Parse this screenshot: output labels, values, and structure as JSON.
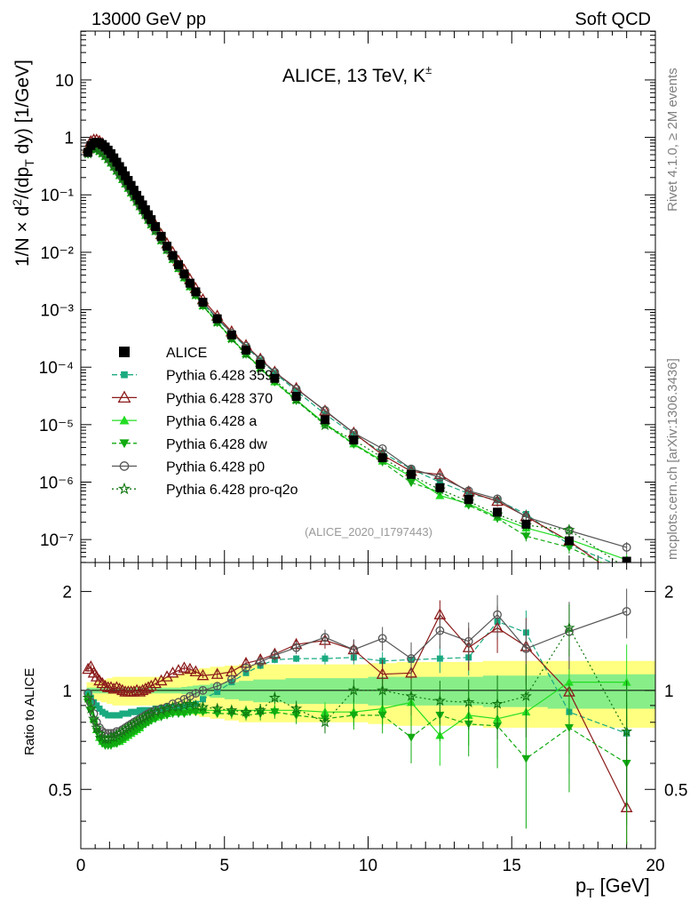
{
  "header": {
    "left": "13000 GeV pp",
    "right": "Soft QCD"
  },
  "side_labels": {
    "top": "Rivet 4.1.0, ≥ 2M events",
    "bottom": "mcplots.cern.ch [arXiv:1306.3436]"
  },
  "colors": {
    "data": "#000000",
    "p359": "#1aaa80",
    "p370": "#8b1a1a",
    "pa": "#22dd22",
    "pdw": "#11aa11",
    "pp0": "#555555",
    "pq2o": "#117711",
    "band_outer": "#ffff80",
    "band_inner": "#88ee88"
  },
  "chart_data": [
    {
      "type": "scatter",
      "panel": "main",
      "title": "ALICE, 13 TeV, K±",
      "title_main": "ALICE, 13 TeV, K",
      "title_sup": "±",
      "analysis_id": "(ALICE_2020_I1797443)",
      "xlabel": "p_T [GeV]",
      "ylabel": "1/N × d²/(dp_T dy) [1/GeV]",
      "xlim": [
        0,
        20
      ],
      "ylim_log10": [
        -7.4,
        1.85
      ],
      "x_ticks": [
        0,
        5,
        10,
        15,
        20
      ],
      "y_tick_labels": [
        "10",
        "1",
        "10⁻¹",
        "10⁻²",
        "10⁻³",
        "10⁻⁴",
        "10⁻⁵",
        "10⁻⁶",
        "10⁻⁷"
      ],
      "legend_position": "center-left",
      "legend": [
        {
          "key": "data",
          "label": "ALICE"
        },
        {
          "key": "p359",
          "label": "Pythia 6.428 359"
        },
        {
          "key": "p370",
          "label": "Pythia 6.428 370"
        },
        {
          "key": "pa",
          "label": "Pythia 6.428 a"
        },
        {
          "key": "pdw",
          "label": "Pythia 6.428 dw"
        },
        {
          "key": "pp0",
          "label": "Pythia 6.428 p0"
        },
        {
          "key": "pq2o",
          "label": "Pythia 6.428 pro-q2o"
        }
      ],
      "x": [
        0.25,
        0.35,
        0.45,
        0.55,
        0.65,
        0.75,
        0.85,
        0.95,
        1.05,
        1.15,
        1.25,
        1.35,
        1.45,
        1.55,
        1.65,
        1.75,
        1.85,
        1.95,
        2.05,
        2.15,
        2.25,
        2.35,
        2.45,
        2.6,
        2.8,
        3.0,
        3.2,
        3.4,
        3.6,
        3.8,
        4.0,
        4.25,
        4.75,
        5.25,
        5.75,
        6.25,
        6.75,
        7.5,
        8.5,
        9.5,
        10.5,
        11.5,
        12.5,
        13.5,
        14.5,
        15.5,
        17.0,
        19.0
      ],
      "data_values": [
        0.55,
        0.72,
        0.8,
        0.82,
        0.8,
        0.75,
        0.68,
        0.6,
        0.52,
        0.44,
        0.37,
        0.31,
        0.26,
        0.215,
        0.178,
        0.146,
        0.12,
        0.098,
        0.081,
        0.067,
        0.055,
        0.045,
        0.037,
        0.028,
        0.019,
        0.0128,
        0.0088,
        0.0061,
        0.0042,
        0.0029,
        0.00205,
        0.00135,
        0.000695,
        0.000364,
        0.000198,
        0.000112,
        6.4e-05,
        3.1e-05,
        1.22e-05,
        5.4e-06,
        2.65e-06,
        1.36e-06,
        8e-07,
        5e-07,
        3e-07,
        1.85e-07,
        9.5e-08,
        4.2e-08
      ],
      "data_values_scaled_note": "",
      "main_values": [
        0.55,
        0.72,
        0.8,
        0.82,
        0.8,
        0.75,
        0.68,
        0.6,
        0.52,
        0.44,
        0.37,
        0.31,
        0.26,
        0.215,
        0.178,
        0.146,
        0.12,
        0.098,
        0.081,
        0.067,
        0.055,
        0.045,
        0.037,
        0.028,
        0.019,
        0.0128,
        0.0088,
        0.0061,
        0.0042,
        0.0029,
        0.00205,
        0.00135,
        0.000695,
        0.000364,
        0.000198,
        0.000112,
        6.4e-05,
        3.1e-05,
        1.22e-05,
        5.4e-06,
        2.65e-06,
        1.36e-06,
        8e-07,
        5e-07,
        3e-07,
        1.85e-07,
        9.5e-08,
        4.2e-08
      ]
    },
    {
      "type": "line",
      "panel": "ratio",
      "ylabel": "Ratio to ALICE",
      "xlabel": "p_T [GeV]",
      "xlim": [
        0,
        20
      ],
      "ylim": [
        0.33,
        2.45
      ],
      "y_ticks": [
        0.5,
        1,
        2
      ],
      "y_tick_labels": [
        "0.5",
        "1",
        "2"
      ],
      "x_tick_labels": [
        "0",
        "5",
        "10",
        "15",
        "20"
      ],
      "x": [
        0.25,
        0.35,
        0.45,
        0.55,
        0.65,
        0.75,
        0.85,
        0.95,
        1.05,
        1.15,
        1.25,
        1.35,
        1.45,
        1.55,
        1.65,
        1.75,
        1.85,
        1.95,
        2.05,
        2.15,
        2.25,
        2.35,
        2.45,
        2.6,
        2.8,
        3.0,
        3.2,
        3.4,
        3.6,
        3.8,
        4.0,
        4.25,
        4.75,
        5.25,
        5.75,
        6.25,
        6.75,
        7.5,
        8.5,
        9.5,
        10.5,
        11.5,
        12.5,
        13.5,
        14.5,
        15.5,
        17.0,
        19.0
      ],
      "band_inner_half": [
        0.02,
        0.02,
        0.02,
        0.02,
        0.02,
        0.02,
        0.02,
        0.02,
        0.02,
        0.02,
        0.02,
        0.02,
        0.02,
        0.02,
        0.02,
        0.02,
        0.02,
        0.02,
        0.02,
        0.02,
        0.02,
        0.02,
        0.02,
        0.02,
        0.02,
        0.02,
        0.02,
        0.02,
        0.025,
        0.03,
        0.035,
        0.04,
        0.05,
        0.06,
        0.07,
        0.08,
        0.08,
        0.09,
        0.09,
        0.09,
        0.1,
        0.1,
        0.1,
        0.1,
        0.11,
        0.11,
        0.12,
        0.12
      ],
      "band_outer_half": [
        0.06,
        0.06,
        0.06,
        0.07,
        0.07,
        0.08,
        0.08,
        0.09,
        0.09,
        0.1,
        0.1,
        0.1,
        0.1,
        0.1,
        0.1,
        0.1,
        0.1,
        0.1,
        0.1,
        0.1,
        0.1,
        0.1,
        0.1,
        0.1,
        0.1,
        0.1,
        0.1,
        0.12,
        0.14,
        0.15,
        0.16,
        0.17,
        0.18,
        0.19,
        0.2,
        0.2,
        0.2,
        0.2,
        0.2,
        0.2,
        0.21,
        0.22,
        0.22,
        0.22,
        0.23,
        0.23,
        0.23,
        0.23
      ],
      "series": [
        {
          "key": "p359",
          "name": "Pythia 6.428 359",
          "marker": "square",
          "dash": "6,3",
          "values": [
            0.98,
            0.95,
            0.92,
            0.9,
            0.88,
            0.86,
            0.85,
            0.84,
            0.84,
            0.84,
            0.84,
            0.84,
            0.85,
            0.85,
            0.85,
            0.86,
            0.86,
            0.86,
            0.87,
            0.87,
            0.87,
            0.87,
            0.87,
            0.88,
            0.88,
            0.89,
            0.89,
            0.89,
            0.89,
            0.9,
            0.91,
            0.94,
            0.99,
            1.06,
            1.13,
            1.19,
            1.24,
            1.25,
            1.25,
            1.26,
            1.23,
            1.24,
            1.25,
            1.26,
            1.62,
            1.5,
            0.86,
            0.74
          ],
          "errors": [
            0.01,
            0.01,
            0.01,
            0.01,
            0.01,
            0.01,
            0.01,
            0.01,
            0.01,
            0.01,
            0.01,
            0.01,
            0.01,
            0.01,
            0.01,
            0.01,
            0.01,
            0.01,
            0.01,
            0.01,
            0.01,
            0.01,
            0.01,
            0.01,
            0.01,
            0.01,
            0.01,
            0.01,
            0.01,
            0.01,
            0.01,
            0.01,
            0.02,
            0.02,
            0.02,
            0.03,
            0.03,
            0.03,
            0.05,
            0.06,
            0.08,
            0.1,
            0.12,
            0.15,
            0.2,
            0.25,
            0.3,
            0.35
          ]
        },
        {
          "key": "p370",
          "name": "Pythia 6.428 370",
          "marker": "triangle-open",
          "dash": "",
          "values": [
            1.16,
            1.18,
            1.13,
            1.1,
            1.07,
            1.05,
            1.03,
            1.02,
            1.02,
            1.01,
            1.02,
            1.01,
            1.0,
            0.99,
            0.99,
            0.99,
            0.99,
            1.0,
            0.99,
            1.0,
            1.01,
            1.02,
            1.03,
            1.05,
            1.07,
            1.1,
            1.13,
            1.15,
            1.17,
            1.16,
            1.14,
            1.11,
            1.12,
            1.14,
            1.21,
            1.24,
            1.29,
            1.38,
            1.42,
            1.33,
            1.12,
            1.13,
            1.7,
            1.35,
            1.55,
            1.36,
            0.99,
            0.44
          ],
          "errors": [
            0.02,
            0.02,
            0.02,
            0.02,
            0.02,
            0.01,
            0.01,
            0.01,
            0.01,
            0.01,
            0.01,
            0.01,
            0.01,
            0.01,
            0.01,
            0.01,
            0.01,
            0.01,
            0.01,
            0.01,
            0.01,
            0.01,
            0.01,
            0.01,
            0.01,
            0.01,
            0.01,
            0.01,
            0.02,
            0.02,
            0.02,
            0.02,
            0.03,
            0.03,
            0.04,
            0.05,
            0.05,
            0.06,
            0.08,
            0.1,
            0.12,
            0.15,
            0.18,
            0.2,
            0.25,
            0.3,
            0.35,
            0.4
          ]
        },
        {
          "key": "pa",
          "name": "Pythia 6.428 a",
          "marker": "triangle",
          "dash": "",
          "values": [
            0.96,
            0.9,
            0.82,
            0.76,
            0.72,
            0.7,
            0.69,
            0.69,
            0.69,
            0.69,
            0.7,
            0.7,
            0.71,
            0.72,
            0.73,
            0.74,
            0.75,
            0.76,
            0.77,
            0.79,
            0.8,
            0.81,
            0.82,
            0.83,
            0.84,
            0.85,
            0.86,
            0.86,
            0.86,
            0.87,
            0.87,
            0.87,
            0.87,
            0.87,
            0.87,
            0.87,
            0.87,
            0.87,
            0.86,
            0.86,
            0.88,
            0.92,
            0.73,
            0.84,
            0.82,
            0.86,
            1.06,
            1.06
          ],
          "errors": [
            0.01,
            0.01,
            0.01,
            0.01,
            0.01,
            0.01,
            0.01,
            0.01,
            0.01,
            0.01,
            0.01,
            0.01,
            0.01,
            0.01,
            0.01,
            0.01,
            0.01,
            0.01,
            0.01,
            0.01,
            0.01,
            0.01,
            0.01,
            0.01,
            0.01,
            0.01,
            0.01,
            0.01,
            0.01,
            0.02,
            0.02,
            0.02,
            0.02,
            0.03,
            0.03,
            0.04,
            0.04,
            0.05,
            0.06,
            0.08,
            0.1,
            0.12,
            0.14,
            0.16,
            0.2,
            0.24,
            0.28,
            0.32
          ]
        },
        {
          "key": "pdw",
          "name": "Pythia 6.428 dw",
          "marker": "triangle-down",
          "dash": "5,3",
          "values": [
            0.92,
            0.86,
            0.8,
            0.75,
            0.71,
            0.69,
            0.68,
            0.68,
            0.68,
            0.69,
            0.69,
            0.7,
            0.71,
            0.72,
            0.73,
            0.74,
            0.75,
            0.76,
            0.77,
            0.78,
            0.79,
            0.8,
            0.81,
            0.82,
            0.83,
            0.84,
            0.85,
            0.85,
            0.85,
            0.86,
            0.86,
            0.86,
            0.85,
            0.85,
            0.84,
            0.85,
            0.86,
            0.84,
            0.82,
            0.84,
            0.84,
            0.72,
            0.84,
            0.79,
            0.78,
            0.62,
            0.77,
            0.6
          ],
          "errors": [
            0.01,
            0.01,
            0.01,
            0.01,
            0.01,
            0.01,
            0.01,
            0.01,
            0.01,
            0.01,
            0.01,
            0.01,
            0.01,
            0.01,
            0.01,
            0.01,
            0.01,
            0.01,
            0.01,
            0.01,
            0.01,
            0.01,
            0.01,
            0.01,
            0.01,
            0.01,
            0.01,
            0.01,
            0.01,
            0.02,
            0.02,
            0.02,
            0.02,
            0.03,
            0.03,
            0.04,
            0.04,
            0.05,
            0.06,
            0.08,
            0.1,
            0.12,
            0.14,
            0.16,
            0.2,
            0.24,
            0.28,
            0.32
          ]
        },
        {
          "key": "pp0",
          "name": "Pythia 6.428 p0",
          "marker": "circle-open",
          "dash": "",
          "values": [
            0.98,
            0.92,
            0.85,
            0.8,
            0.77,
            0.75,
            0.74,
            0.74,
            0.74,
            0.74,
            0.75,
            0.75,
            0.76,
            0.77,
            0.78,
            0.79,
            0.8,
            0.81,
            0.82,
            0.83,
            0.84,
            0.85,
            0.86,
            0.87,
            0.88,
            0.89,
            0.91,
            0.92,
            0.94,
            0.96,
            0.98,
            1.0,
            1.03,
            1.08,
            1.17,
            1.22,
            1.28,
            1.35,
            1.45,
            1.33,
            1.44,
            1.25,
            1.52,
            1.41,
            1.7,
            1.34,
            1.51,
            1.74
          ],
          "errors": [
            0.01,
            0.01,
            0.01,
            0.01,
            0.01,
            0.01,
            0.01,
            0.01,
            0.01,
            0.01,
            0.01,
            0.01,
            0.01,
            0.01,
            0.01,
            0.01,
            0.01,
            0.01,
            0.01,
            0.01,
            0.01,
            0.01,
            0.01,
            0.01,
            0.01,
            0.01,
            0.01,
            0.01,
            0.02,
            0.02,
            0.02,
            0.02,
            0.03,
            0.03,
            0.04,
            0.05,
            0.05,
            0.06,
            0.08,
            0.1,
            0.12,
            0.15,
            0.18,
            0.2,
            0.25,
            0.3,
            0.35,
            0.3
          ]
        },
        {
          "key": "pq2o",
          "name": "Pythia 6.428 pro-q2o",
          "marker": "star",
          "dash": "2,3",
          "values": [
            0.95,
            0.88,
            0.82,
            0.77,
            0.74,
            0.72,
            0.71,
            0.71,
            0.72,
            0.72,
            0.73,
            0.74,
            0.75,
            0.76,
            0.77,
            0.78,
            0.79,
            0.8,
            0.81,
            0.82,
            0.83,
            0.84,
            0.85,
            0.86,
            0.87,
            0.88,
            0.89,
            0.89,
            0.9,
            0.91,
            0.9,
            0.89,
            0.88,
            0.87,
            0.86,
            0.87,
            0.95,
            0.88,
            0.8,
            1.0,
            1.0,
            0.96,
            0.93,
            0.92,
            0.91,
            0.96,
            1.55,
            0.75
          ],
          "errors": [
            0.01,
            0.01,
            0.01,
            0.01,
            0.01,
            0.01,
            0.01,
            0.01,
            0.01,
            0.01,
            0.01,
            0.01,
            0.01,
            0.01,
            0.01,
            0.01,
            0.01,
            0.01,
            0.01,
            0.01,
            0.01,
            0.01,
            0.01,
            0.01,
            0.01,
            0.01,
            0.01,
            0.01,
            0.01,
            0.02,
            0.02,
            0.02,
            0.02,
            0.03,
            0.03,
            0.04,
            0.04,
            0.05,
            0.06,
            0.08,
            0.1,
            0.12,
            0.14,
            0.16,
            0.2,
            0.24,
            0.28,
            0.32
          ]
        }
      ]
    }
  ]
}
